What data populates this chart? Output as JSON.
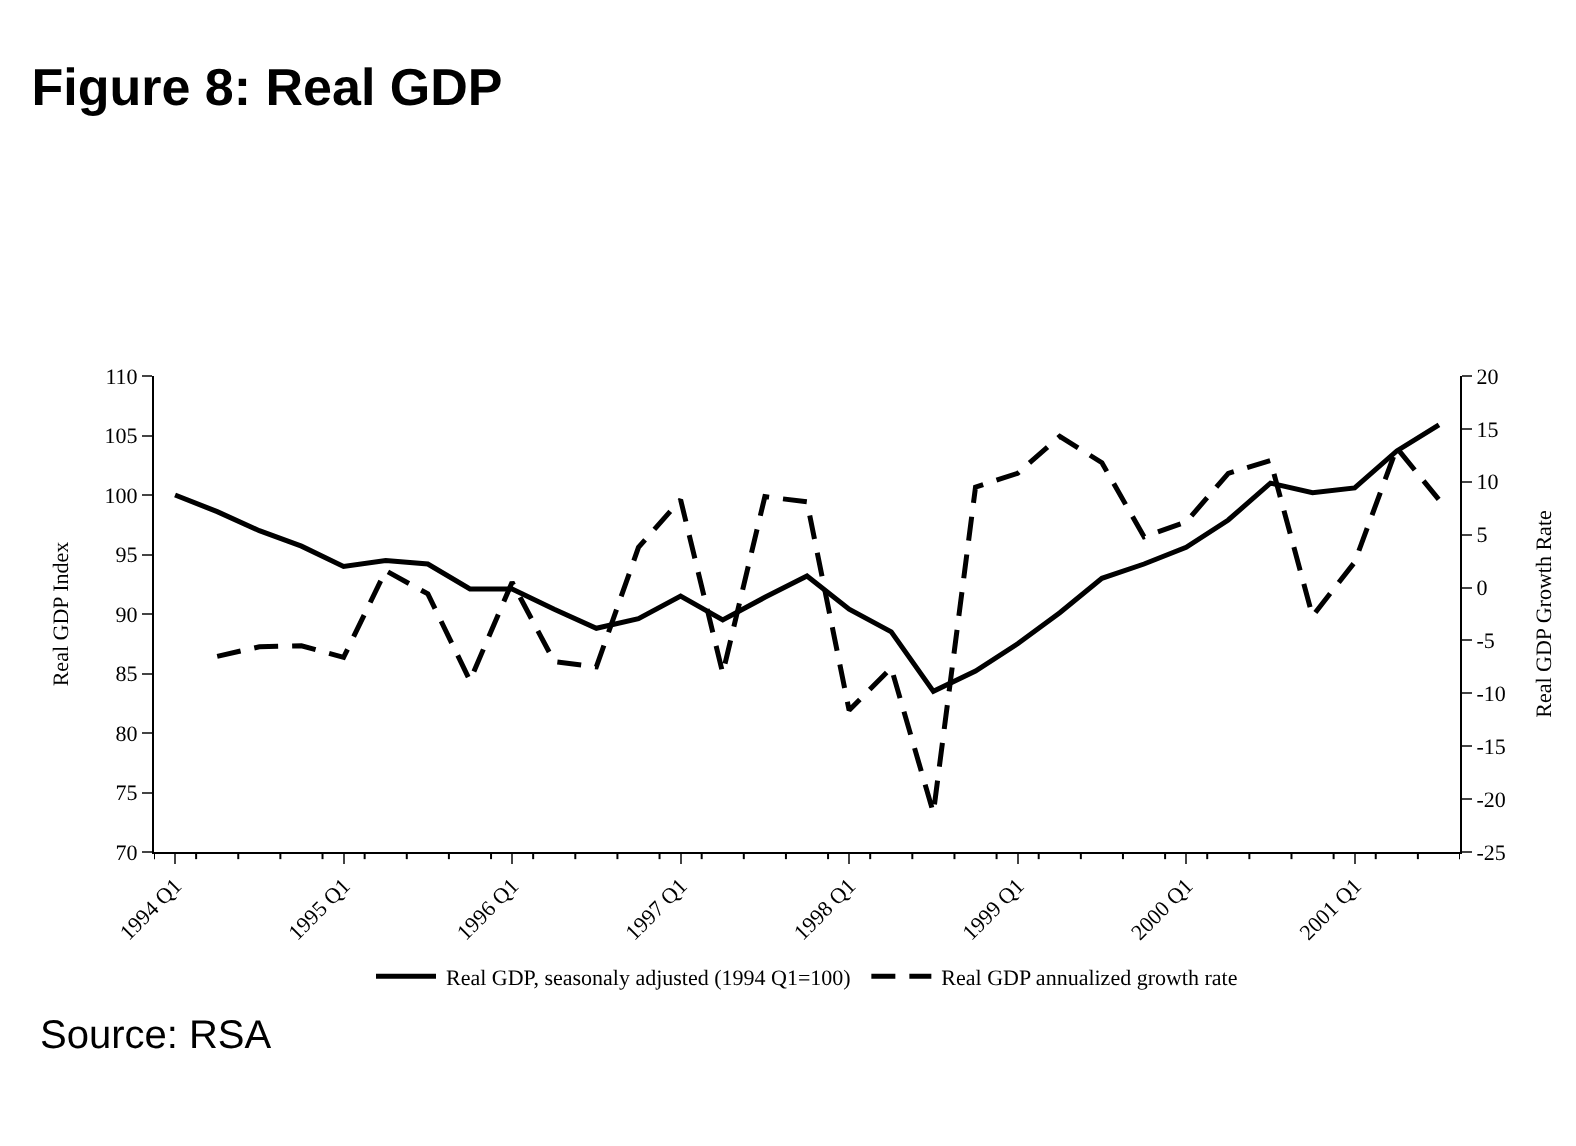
{
  "chart_data": {
    "type": "line",
    "title": "Figure 8: Real GDP",
    "categories": [
      "1994 Q1",
      null,
      null,
      null,
      "1995 Q1",
      null,
      null,
      null,
      "1996 Q1",
      null,
      null,
      null,
      "1997 Q1",
      null,
      null,
      null,
      "1998 Q1",
      null,
      null,
      null,
      "1999 Q1",
      null,
      null,
      null,
      "2000 Q1",
      null,
      null,
      null,
      "2001 Q1",
      null,
      null
    ],
    "ylabel": "Real GDP Index",
    "y2label": "Real GDP Growth Rate",
    "ylim": [
      70,
      110
    ],
    "yticks": [
      70,
      75,
      80,
      85,
      90,
      95,
      100,
      105,
      110
    ],
    "y2lim": [
      -25,
      20
    ],
    "y2ticks": [
      -25,
      -20,
      -15,
      -10,
      -5,
      0,
      5,
      10,
      15,
      20
    ],
    "series": [
      {
        "name": "Real GDP, seasonaly adjusted (1994 Q1=100)",
        "color": "#000000",
        "line_style": "solid",
        "values": [
          100.0,
          98.6,
          97.0,
          95.7,
          94.0,
          94.5,
          94.2,
          92.1,
          92.1,
          90.4,
          88.8,
          89.6,
          91.5,
          89.5,
          91.4,
          93.2,
          90.4,
          88.5,
          83.5,
          85.2,
          87.5,
          90.1,
          93.0,
          94.2,
          95.6,
          97.9,
          101.0,
          100.2,
          100.6,
          103.7,
          105.9
        ]
      },
      {
        "name": "Real GDP annualized growth rate",
        "color": "#000000",
        "line_style": "dashed",
        "axis": "y2",
        "values": [
          null,
          -6.5,
          -5.6,
          -5.5,
          -6.6,
          1.6,
          -0.6,
          -8.8,
          0.5,
          -7.0,
          -7.5,
          3.8,
          8.3,
          -8.1,
          8.6,
          8.1,
          -11.6,
          -7.6,
          -21.3,
          9.5,
          10.8,
          14.3,
          11.8,
          4.8,
          6.2,
          10.8,
          12.0,
          -2.7,
          2.4,
          13.2,
          8.3
        ]
      }
    ],
    "legend": "bottom",
    "marker": "none",
    "annotations": [
      "Source: RSA"
    ]
  }
}
